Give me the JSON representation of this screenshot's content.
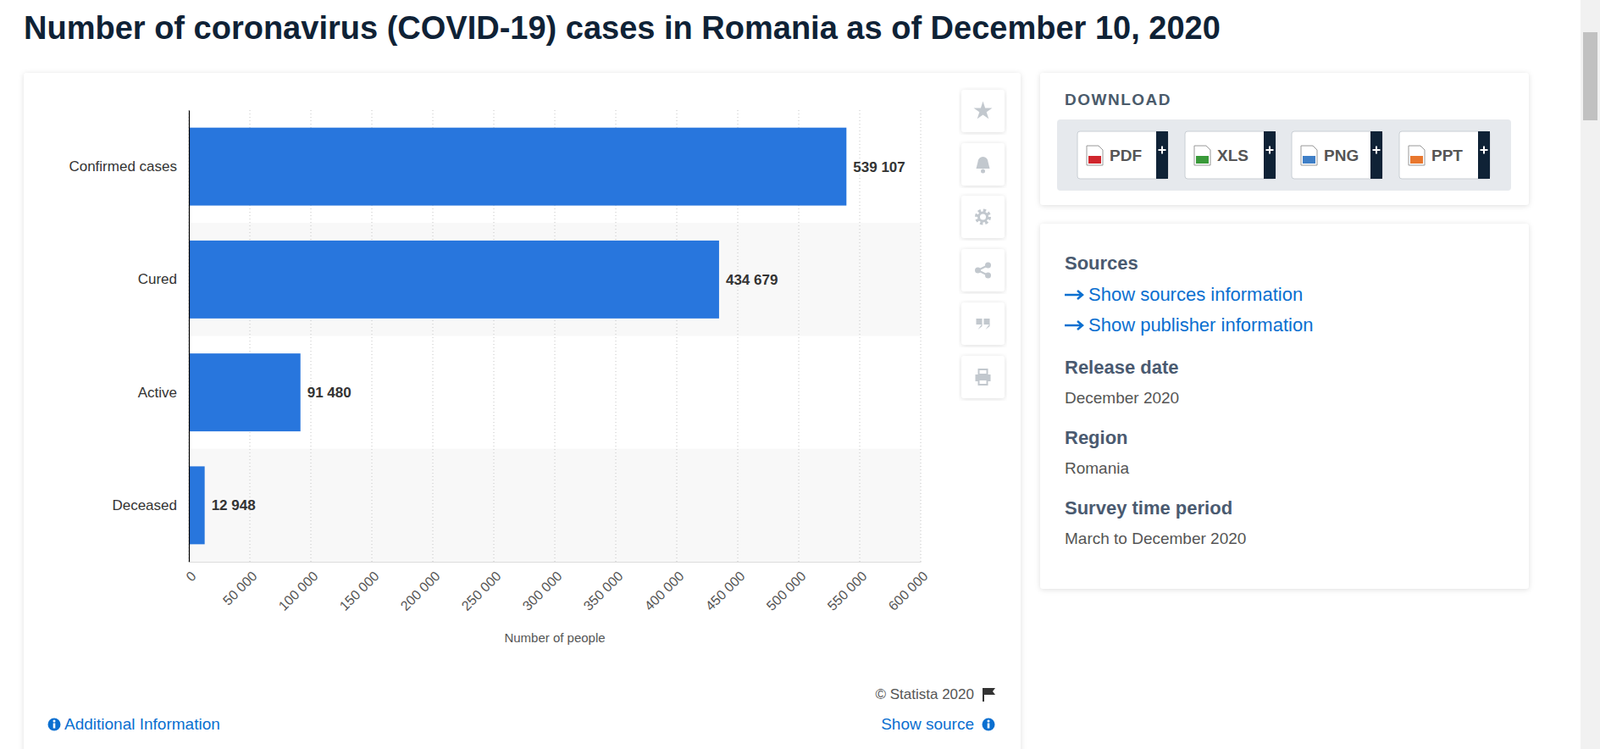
{
  "chart_data": {
    "type": "bar",
    "orientation": "horizontal",
    "title": "Number of coronavirus (COVID-19) cases in Romania as of December 10, 2020",
    "categories": [
      "Confirmed cases",
      "Cured",
      "Active",
      "Deceased"
    ],
    "values": [
      539107,
      434679,
      91480,
      12948
    ],
    "value_labels": [
      "539 107",
      "434 679",
      "91 480",
      "12 948"
    ],
    "color": "#2876dd",
    "xlabel": "Number of people",
    "xlim": [
      0,
      600000
    ],
    "xticks": [
      0,
      {
        "value": 50000,
        "label": "50 000"
      },
      {
        "value": 100000,
        "label": "100 000"
      },
      {
        "value": 150000,
        "label": "150 000"
      },
      {
        "value": 200000,
        "label": "200 000"
      },
      {
        "value": 250000,
        "label": "250 000"
      },
      {
        "value": 300000,
        "label": "300 000"
      },
      {
        "value": 350000,
        "label": "350 000"
      },
      {
        "value": 400000,
        "label": "400 000"
      },
      {
        "value": 450000,
        "label": "450 000"
      },
      {
        "value": 500000,
        "label": "500 000"
      },
      {
        "value": 550000,
        "label": "550 000"
      },
      {
        "value": 600000,
        "label": "600 000"
      }
    ],
    "grid": true,
    "data_labels": true
  },
  "page": {
    "download": {
      "heading": "DOWNLOAD",
      "buttons": [
        "PDF",
        "XLS",
        "PNG",
        "PPT"
      ]
    },
    "info": {
      "heading": "Sources",
      "links": [
        "Show sources information",
        "Show publisher information"
      ],
      "fields": [
        {
          "label": "Release date",
          "value": "December 2020"
        },
        {
          "label": "Region",
          "value": "Romania"
        },
        {
          "label": "Survey time period",
          "value": "March to December 2020"
        }
      ]
    },
    "footer": {
      "copyright": "© Statista 2020",
      "additional": "Additional Information",
      "show_source": "Show source"
    }
  }
}
